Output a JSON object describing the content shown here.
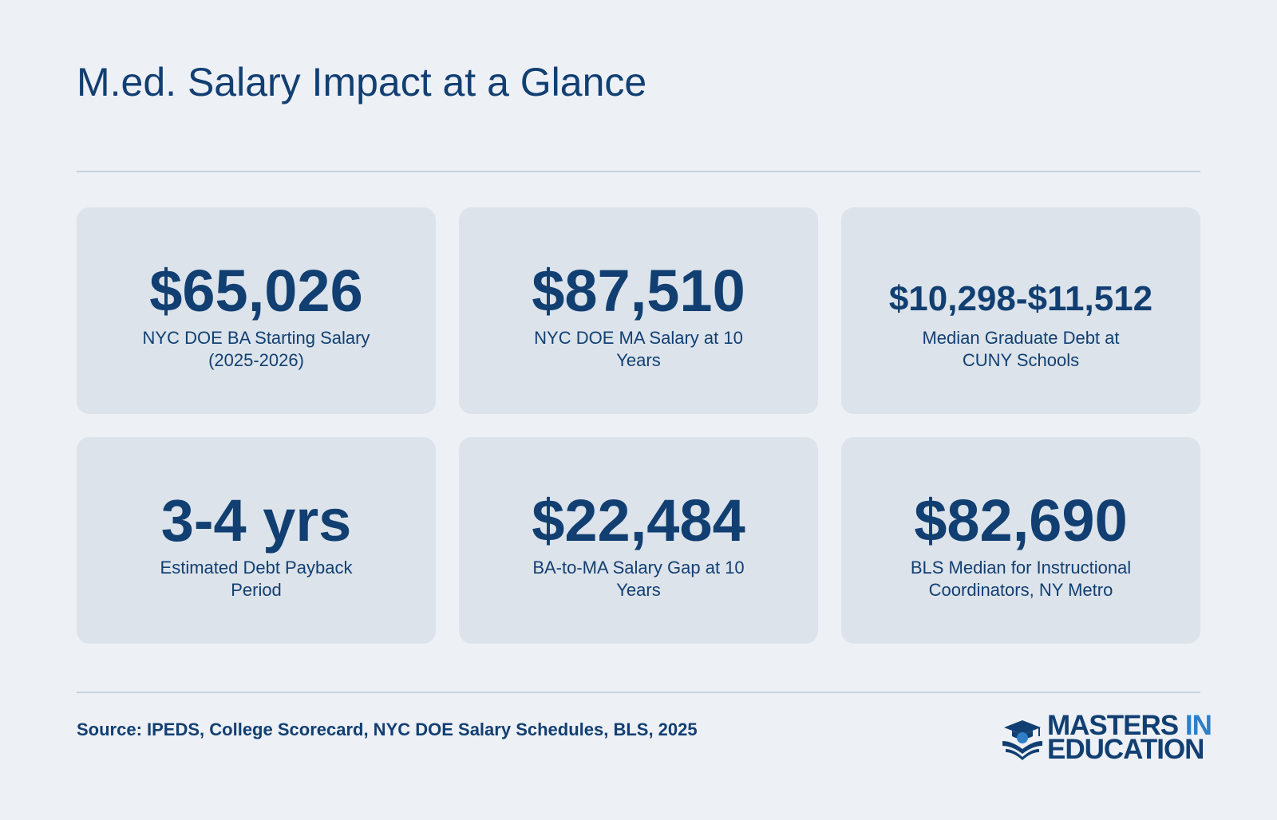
{
  "title": "M.ed. Salary Impact at a Glance",
  "cards": [
    {
      "value": "$65,026",
      "label": "NYC DOE BA Starting Salary (2025-2026)"
    },
    {
      "value": "$87,510",
      "label": "NYC DOE MA Salary at 10 Years"
    },
    {
      "value": "$10,298-$11,512",
      "label": "Median Graduate Debt at CUNY Schools"
    },
    {
      "value": "3-4 yrs",
      "label": "Estimated Debt Payback Period"
    },
    {
      "value": "$22,484",
      "label": "BA-to-MA Salary Gap at 10 Years"
    },
    {
      "value": "$82,690",
      "label": "BLS Median for Instructional Coordinators, NY Metro"
    }
  ],
  "source": "Source: IPEDS, College Scorecard, NYC DOE Salary Schedules, BLS, 2025",
  "logo": {
    "line1": "MASTERS",
    "line1_accent": "IN",
    "line2": "EDUCATION",
    "icon": "graduation-cap-book-icon"
  },
  "colors": {
    "background": "#edf0f5",
    "card": "#dce3ea",
    "primary": "#123f72",
    "accent": "#2f7fc8",
    "rule": "#c7d2de"
  }
}
